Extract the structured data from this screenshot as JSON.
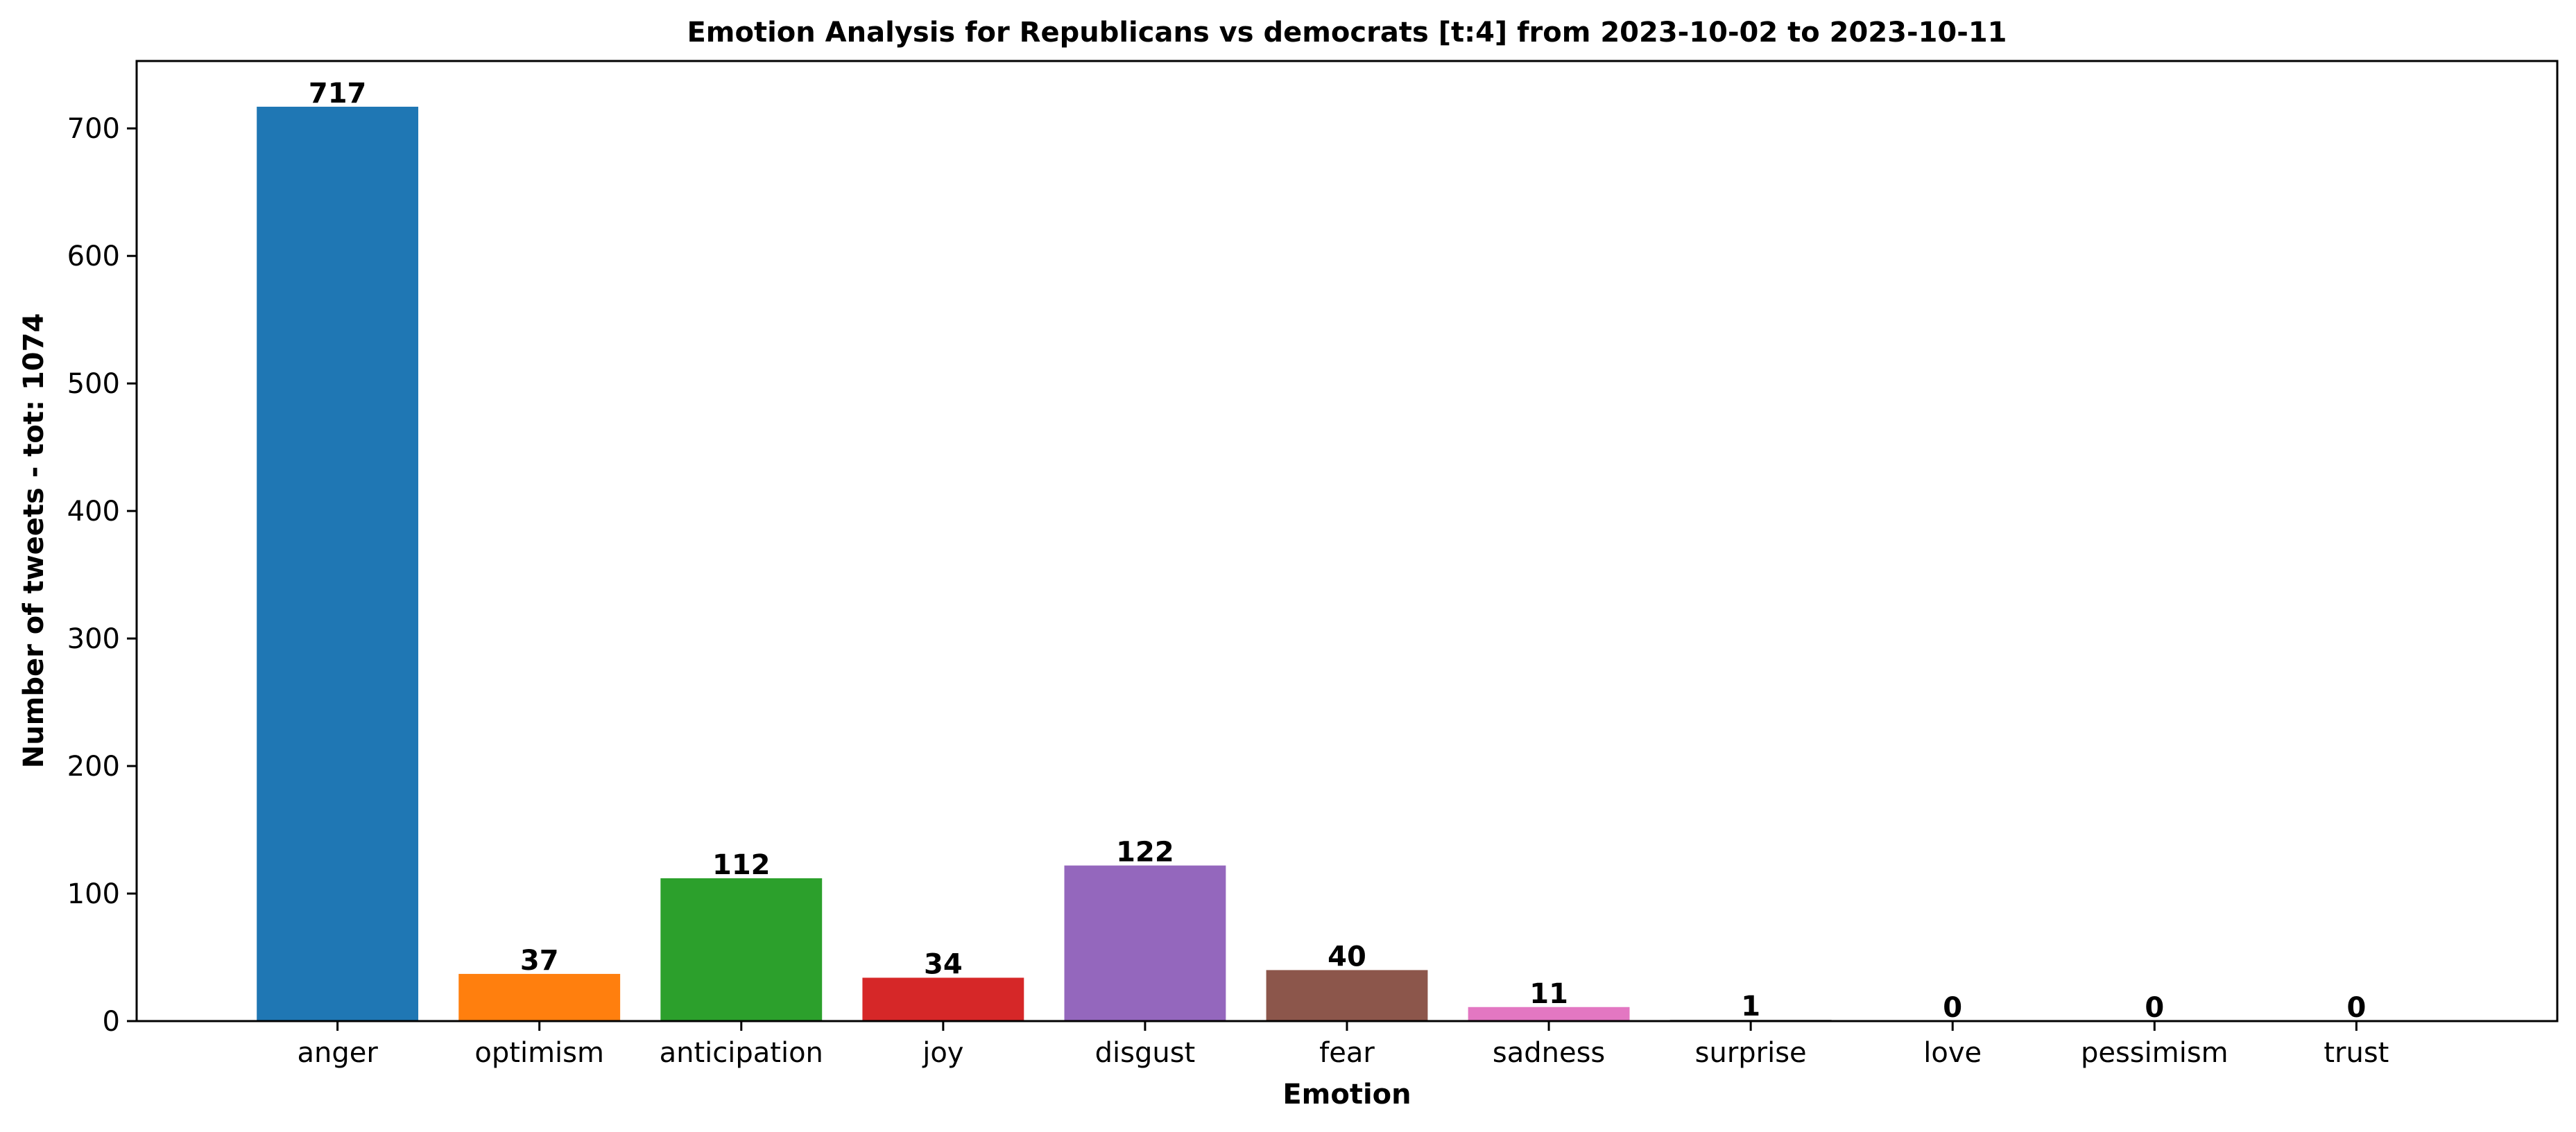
{
  "chart_data": {
    "type": "bar",
    "title": "Emotion Analysis for Republicans vs democrats [t:4] from 2023-10-02 to 2023-10-11",
    "xlabel": "Emotion",
    "ylabel": "Number of tweets - tot: 1074",
    "categories": [
      "anger",
      "optimism",
      "anticipation",
      "joy",
      "disgust",
      "fear",
      "sadness",
      "surprise",
      "love",
      "pessimism",
      "trust"
    ],
    "values": [
      717,
      37,
      112,
      34,
      122,
      40,
      11,
      1,
      0,
      0,
      0
    ],
    "value_labels": [
      "717",
      "37",
      "112",
      "34",
      "122",
      "40",
      "11",
      "1",
      "0",
      "0",
      "0"
    ],
    "colors": [
      "#1f77b4",
      "#ff7f0e",
      "#2ca02c",
      "#d62728",
      "#9467bd",
      "#8c564b",
      "#e377c2",
      "#7f7f7f",
      "#bcbd22",
      "#17becf",
      "#1f77b4"
    ],
    "ylim": [
      0,
      752.85
    ],
    "yticks": [
      0,
      100,
      200,
      300,
      400,
      500,
      600,
      700
    ],
    "ytick_labels": [
      "0",
      "100",
      "200",
      "300",
      "400",
      "500",
      "600",
      "700"
    ],
    "grid": false,
    "legend": "none"
  }
}
